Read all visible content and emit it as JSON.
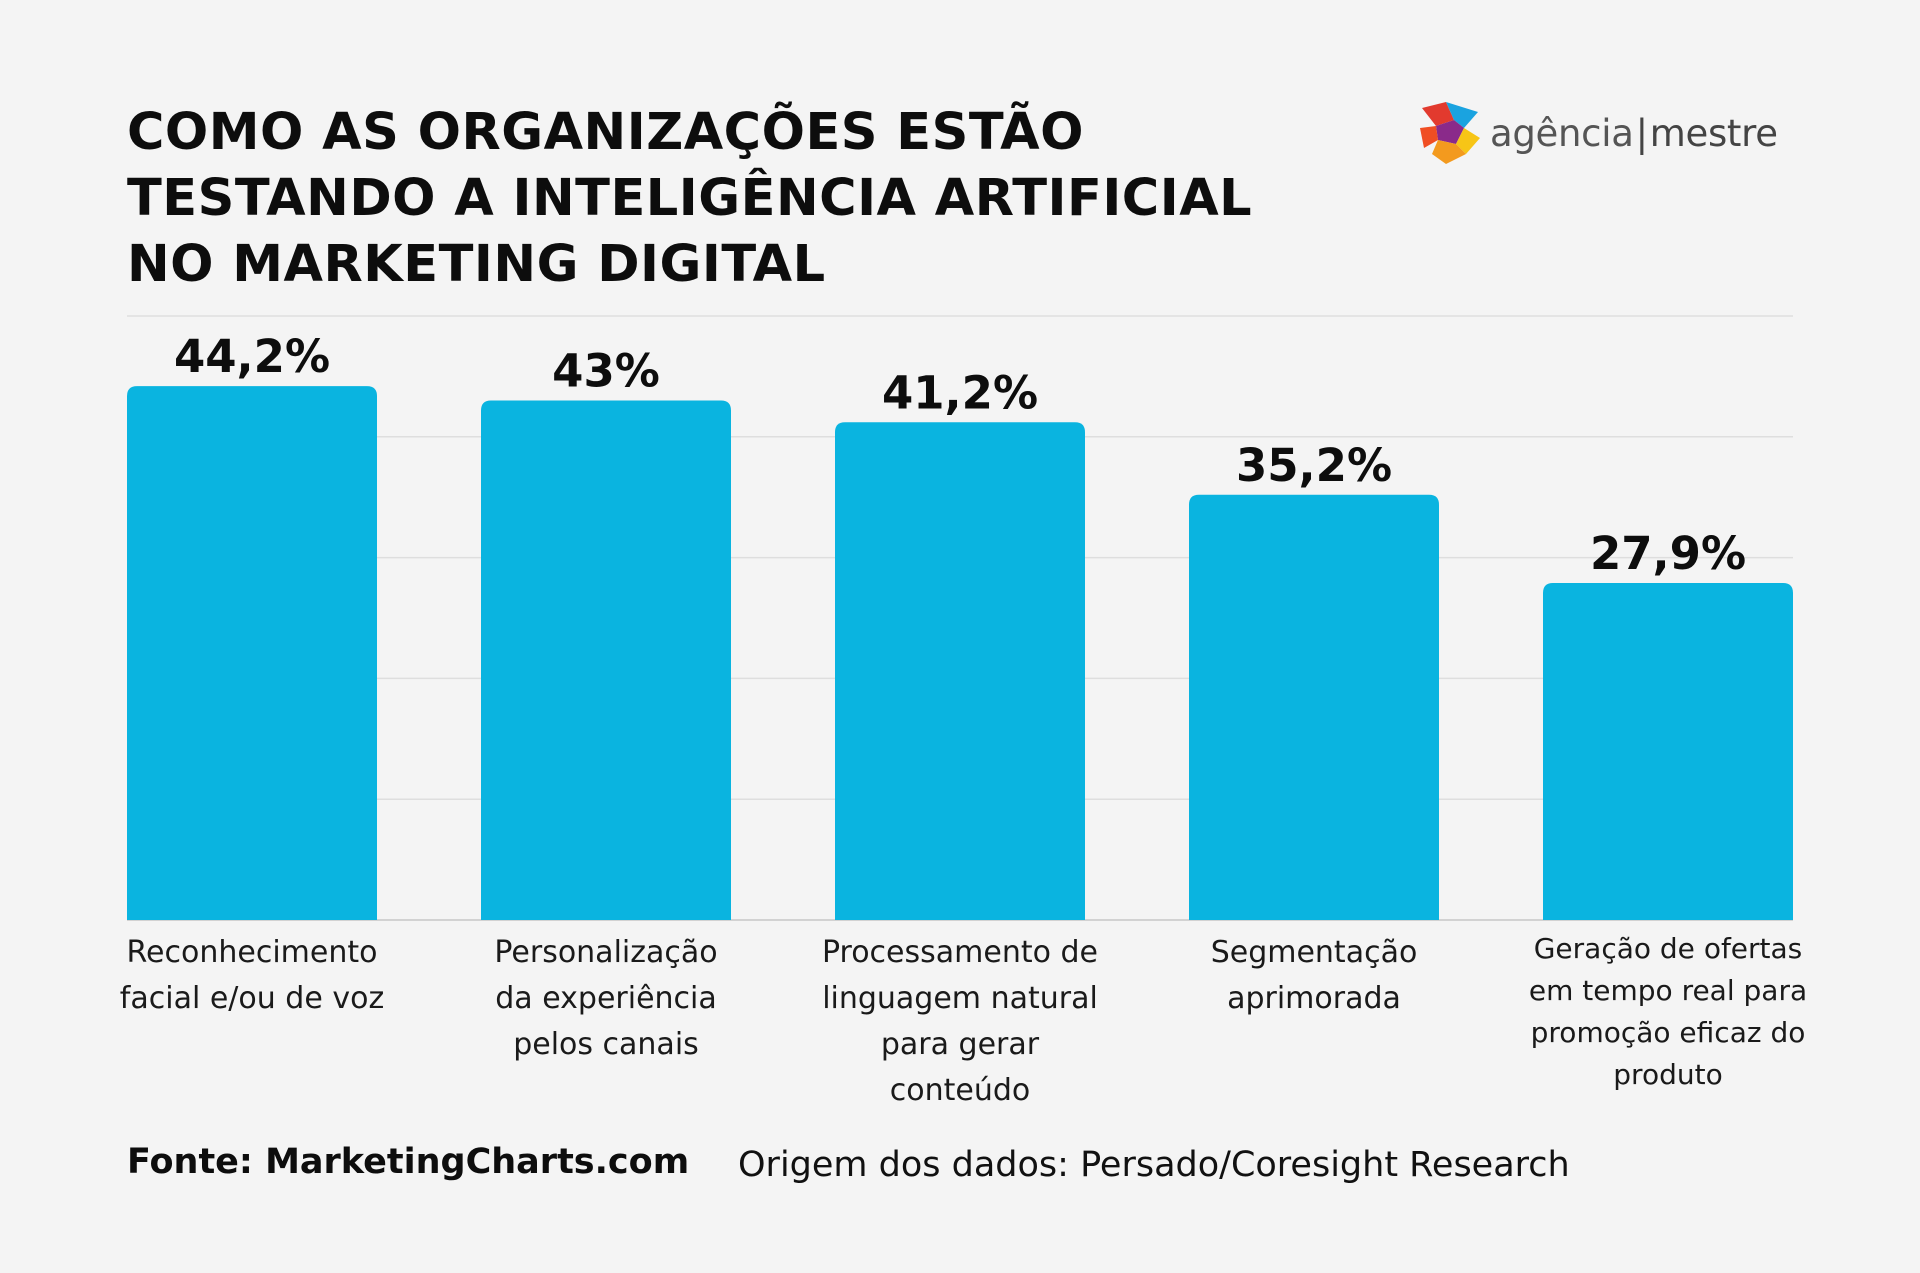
{
  "header": {
    "title_lines": [
      "COMO AS ORGANIZAÇÕES ESTÃO",
      "TESTANDO A INTELIGÊNCIA ARTIFICIAL",
      "NO MARKETING DIGITAL"
    ],
    "logo": {
      "icon": "star-burst-logo-icon",
      "word1": "agência",
      "separator": "|",
      "word2": "mestre"
    }
  },
  "chart_data": {
    "type": "bar",
    "title": "COMO AS ORGANIZAÇÕES ESTÃO TESTANDO A INTELIGÊNCIA ARTIFICIAL NO MARKETING DIGITAL",
    "xlabel": "",
    "ylabel": "",
    "ylim": [
      0,
      50
    ],
    "grid": true,
    "bar_color": "#0ab4e0",
    "categories": [
      [
        "Reconhecimento",
        "facial e/ou de voz"
      ],
      [
        "Personalização",
        "da experiência",
        "pelos canais"
      ],
      [
        "Processamento de",
        "linguagem natural",
        "para gerar",
        "conteúdo"
      ],
      [
        "Segmentação",
        "aprimorada"
      ],
      [
        "Geração de ofertas",
        "em tempo real para",
        "promoção eficaz do",
        "produto"
      ]
    ],
    "values": [
      44.2,
      43,
      41.2,
      35.2,
      27.9
    ],
    "value_labels": [
      "44,2%",
      "43%",
      "41,2%",
      "35,2%",
      "27,9%"
    ]
  },
  "footer": {
    "source": "Fonte: MarketingCharts.com",
    "origin": "Origem dos dados: Persado/Coresight Research"
  }
}
